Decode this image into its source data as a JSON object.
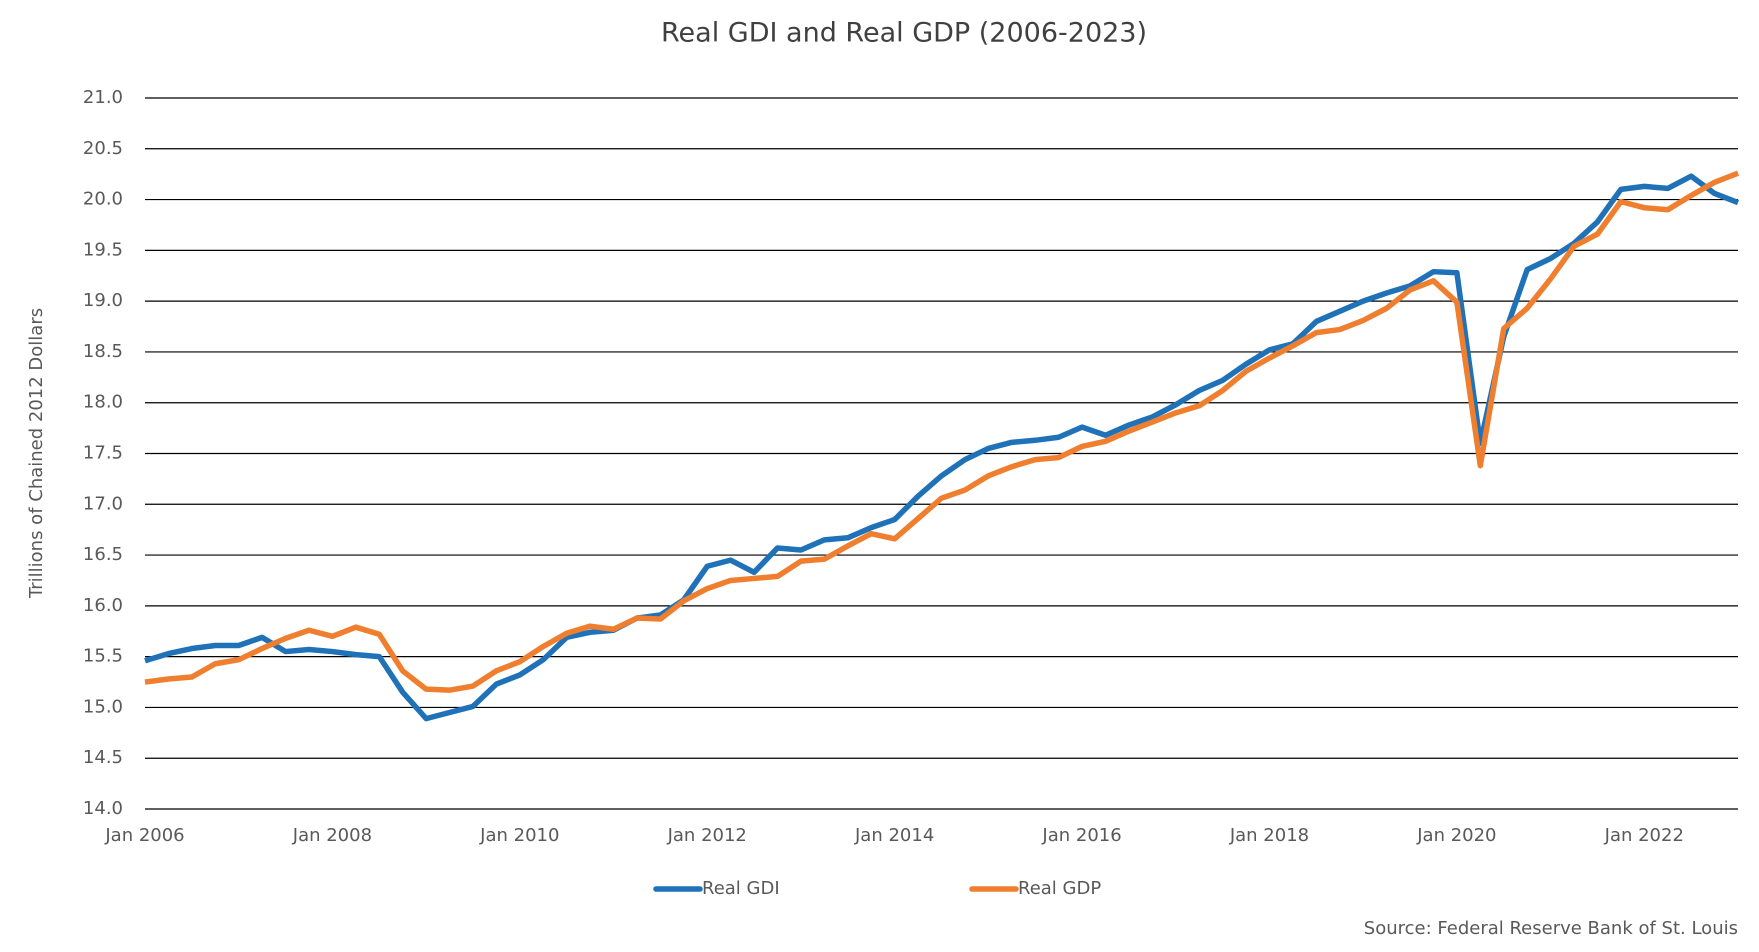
{
  "chart_data": {
    "type": "line",
    "title": "Real GDI and Real GDP (2006-2023)",
    "y_label": "Trillions  of Chained  2012  Dollars",
    "source": "Source: Federal Reserve Bank  of St. Louis",
    "x": [
      "2006-01",
      "2006-04",
      "2006-07",
      "2006-10",
      "2007-01",
      "2007-04",
      "2007-07",
      "2007-10",
      "2008-01",
      "2008-04",
      "2008-07",
      "2008-10",
      "2009-01",
      "2009-04",
      "2009-07",
      "2009-10",
      "2010-01",
      "2010-04",
      "2010-07",
      "2010-10",
      "2011-01",
      "2011-04",
      "2011-07",
      "2011-10",
      "2012-01",
      "2012-04",
      "2012-07",
      "2012-10",
      "2013-01",
      "2013-04",
      "2013-07",
      "2013-10",
      "2014-01",
      "2014-04",
      "2014-07",
      "2014-10",
      "2015-01",
      "2015-04",
      "2015-07",
      "2015-10",
      "2016-01",
      "2016-04",
      "2016-07",
      "2016-10",
      "2017-01",
      "2017-04",
      "2017-07",
      "2017-10",
      "2018-01",
      "2018-04",
      "2018-07",
      "2018-10",
      "2019-01",
      "2019-04",
      "2019-07",
      "2019-10",
      "2020-01",
      "2020-04",
      "2020-07",
      "2020-10",
      "2021-01",
      "2021-04",
      "2021-07",
      "2021-10",
      "2022-01",
      "2022-04",
      "2022-07",
      "2022-10",
      "2023-01"
    ],
    "series": [
      {
        "name": "Real GDI",
        "color": "#1f72b8",
        "values": [
          15.46,
          15.53,
          15.58,
          15.61,
          15.61,
          15.69,
          15.55,
          15.57,
          15.55,
          15.52,
          15.5,
          15.15,
          14.89,
          14.95,
          15.01,
          15.23,
          15.32,
          15.47,
          15.69,
          15.74,
          15.76,
          15.88,
          15.91,
          16.06,
          16.39,
          16.45,
          16.33,
          16.57,
          16.55,
          16.65,
          16.67,
          16.77,
          16.85,
          17.08,
          17.28,
          17.44,
          17.55,
          17.61,
          17.63,
          17.66,
          17.76,
          17.68,
          17.78,
          17.86,
          17.98,
          18.12,
          18.22,
          18.38,
          18.52,
          18.58,
          18.8,
          18.9,
          19.0,
          19.08,
          19.15,
          19.29,
          19.28,
          17.6,
          18.65,
          19.31,
          19.42,
          19.57,
          19.78,
          20.1,
          20.13,
          20.11,
          20.23,
          20.06,
          19.97
        ]
      },
      {
        "name": "Real GDP",
        "color": "#ef7f2e",
        "values": [
          15.25,
          15.28,
          15.3,
          15.43,
          15.47,
          15.58,
          15.68,
          15.76,
          15.7,
          15.79,
          15.72,
          15.36,
          15.18,
          15.17,
          15.21,
          15.36,
          15.45,
          15.6,
          15.73,
          15.8,
          15.77,
          15.88,
          15.87,
          16.05,
          16.17,
          16.25,
          16.27,
          16.29,
          16.44,
          16.46,
          16.59,
          16.71,
          16.66,
          16.86,
          17.06,
          17.14,
          17.28,
          17.37,
          17.44,
          17.46,
          17.57,
          17.62,
          17.72,
          17.81,
          17.9,
          17.97,
          18.12,
          18.31,
          18.44,
          18.56,
          18.69,
          18.72,
          18.81,
          18.93,
          19.11,
          19.2,
          18.99,
          17.38,
          18.73,
          18.93,
          19.22,
          19.54,
          19.66,
          19.98,
          19.92,
          19.9,
          20.04,
          20.17,
          20.26
        ]
      }
    ],
    "xlim": [
      "2006-01",
      "2023-01"
    ],
    "xticks": [
      {
        "value": "2006-01",
        "label": "Jan 2006"
      },
      {
        "value": "2008-01",
        "label": "Jan 2008"
      },
      {
        "value": "2010-01",
        "label": "Jan 2010"
      },
      {
        "value": "2012-01",
        "label": "Jan 2012"
      },
      {
        "value": "2014-01",
        "label": "Jan 2014"
      },
      {
        "value": "2016-01",
        "label": "Jan 2016"
      },
      {
        "value": "2018-01",
        "label": "Jan 2018"
      },
      {
        "value": "2020-01",
        "label": "Jan 2020"
      },
      {
        "value": "2022-01",
        "label": "Jan 2022"
      }
    ],
    "ylim": [
      14,
      21
    ],
    "yticks": [
      {
        "value": 14,
        "label": "14.0"
      },
      {
        "value": 14.5,
        "label": "14.5"
      },
      {
        "value": 15,
        "label": "15.0"
      },
      {
        "value": 15.5,
        "label": "15.5"
      },
      {
        "value": 16,
        "label": "16.0"
      },
      {
        "value": 16.5,
        "label": "16.5"
      },
      {
        "value": 17,
        "label": "17.0"
      },
      {
        "value": 17.5,
        "label": "17.5"
      },
      {
        "value": 18,
        "label": "18.0"
      },
      {
        "value": 18.5,
        "label": "18.5"
      },
      {
        "value": 19,
        "label": "19.0"
      },
      {
        "value": 19.5,
        "label": "19.5"
      },
      {
        "value": 20,
        "label": "20.0"
      },
      {
        "value": 20.5,
        "label": "20.5"
      },
      {
        "value": 21,
        "label": "21.0"
      }
    ],
    "grid": true,
    "legend": "bottom"
  }
}
